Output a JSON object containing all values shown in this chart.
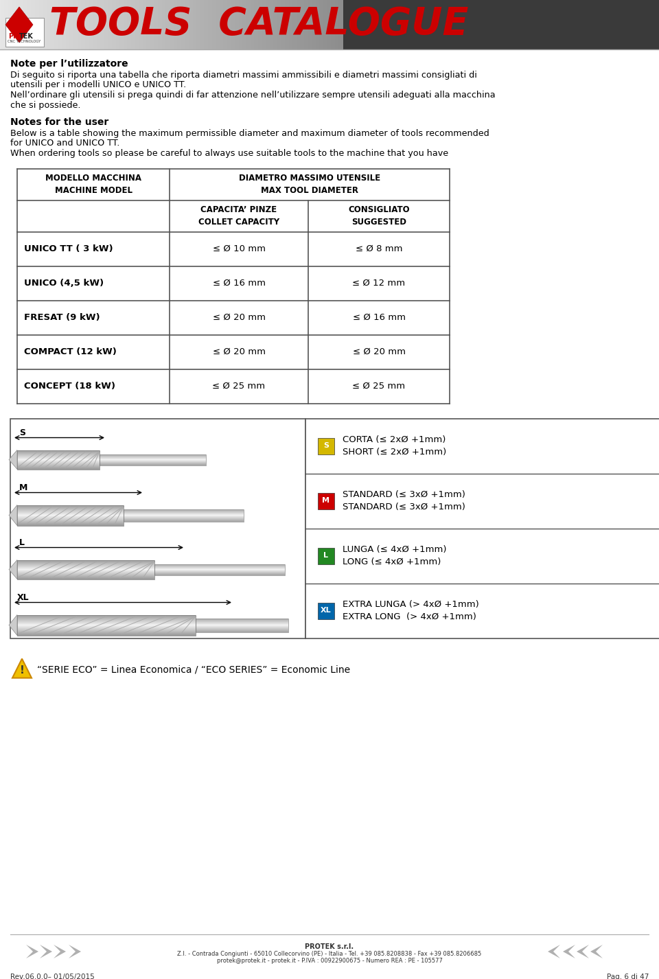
{
  "header_title": "TOOLS  CATALOGUE",
  "header_title_color": "#cc0000",
  "italian_title": "Note per l’utilizzatore",
  "italian_body": [
    "Di seguito si riporta una tabella che riporta diametri massimi ammissibili e diametri massimi consigliati di",
    "utensili per i modelli UNICO e UNICO TT.",
    "Nell’ordinare gli utensili si prega quindi di far attenzione nell’utilizzare sempre utensili adeguati alla macchina",
    "che si possiede."
  ],
  "english_title": "Notes for the user",
  "english_body": [
    "Below is a table showing the maximum permissible diameter and maximum diameter of tools recommended",
    "for UNICO and UNICO TT.",
    "When ordering tools so please be careful to always use suitable tools to the machine that you have"
  ],
  "table_data": [
    [
      "UNICO TT ( 3 kW)",
      "≤ Ø 10 mm",
      "≤ Ø 8 mm"
    ],
    [
      "UNICO (4,5 kW)",
      "≤ Ø 16 mm",
      "≤ Ø 12 mm"
    ],
    [
      "FRESAT (9 kW)",
      "≤ Ø 20 mm",
      "≤ Ø 16 mm"
    ],
    [
      "COMPACT (12 kW)",
      "≤ Ø 20 mm",
      "≤ Ø 20 mm"
    ],
    [
      "CONCEPT (18 kW)",
      "≤ Ø 25 mm",
      "≤ Ø 25 mm"
    ]
  ],
  "tool_legend": [
    {
      "label": "S",
      "color": "#d4b800",
      "it": "CORTA (≤ 2xØ +1mm)",
      "en": "SHORT (≤ 2xØ +1mm)"
    },
    {
      "label": "M",
      "color": "#cc0000",
      "it": "STANDARD (≤ 3xØ +1mm)",
      "en": "STANDARD (≤ 3xØ +1mm)"
    },
    {
      "label": "L",
      "color": "#228822",
      "it": "LUNGA (≤ 4xØ +1mm)",
      "en": "LONG (≤ 4xØ +1mm)"
    },
    {
      "label": "XL",
      "color": "#0066aa",
      "it": "EXTRA LUNGA (> 4xØ +1mm)",
      "en": "EXTRA LONG  (> 4xØ +1mm)"
    }
  ],
  "eco_note": "“SERIE ECO” = Linea Economica / “ECO SERIES” = Economic Line",
  "footer_company": "PROTEK s.r.l.",
  "footer_address": "Z.I. - Contrada Congiunti - 65010 Collecorvino (PE) - Italia - Tel. +39 085.8208838 - Fax +39 085.8206685",
  "footer_vat": "protek@protek.it - protek.it - P.IVA : 00922900675 - Numero REA : PE - 105577",
  "footer_left": "Rev.06.0.0– 01/05/2015",
  "footer_right": "Pag. 6 di 47"
}
